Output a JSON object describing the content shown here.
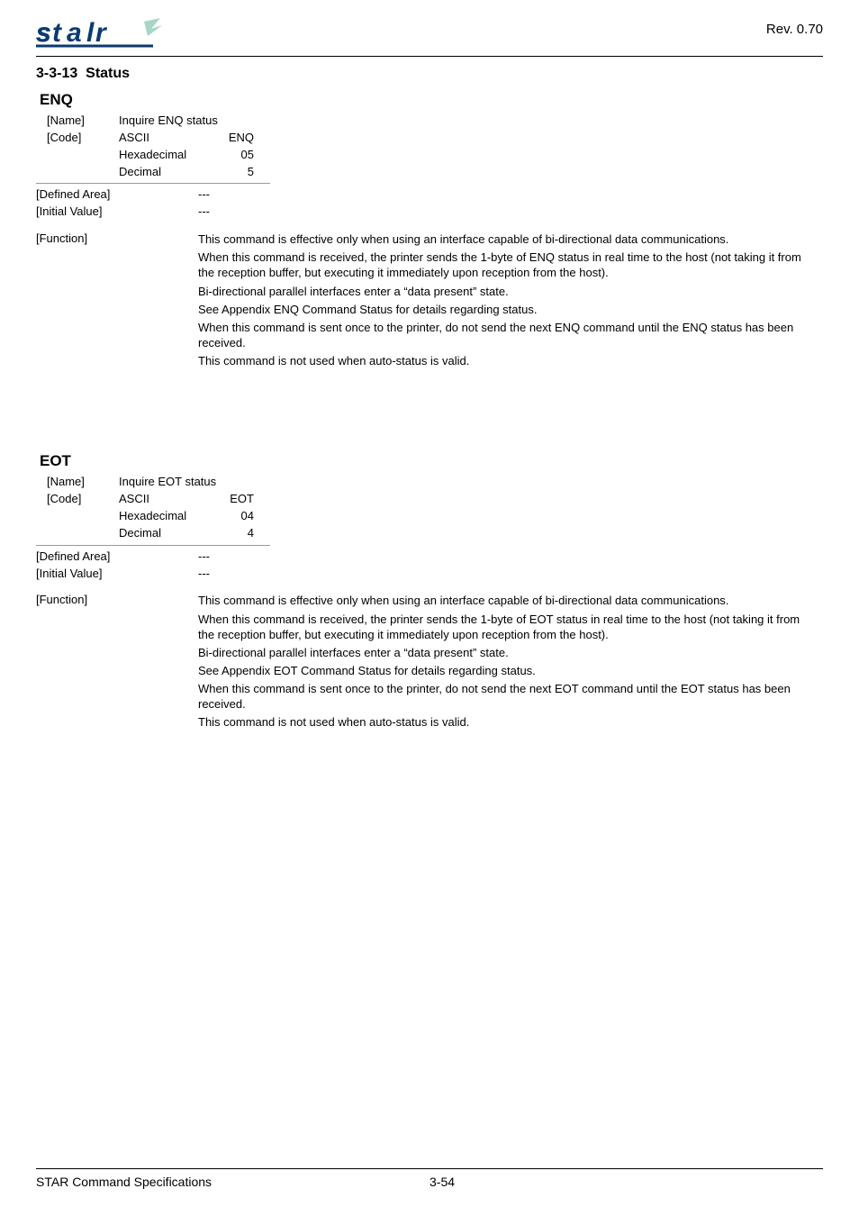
{
  "header": {
    "revision": "Rev. 0.70",
    "logo_main_color": "#0b3a6f",
    "logo_accent_color": "#a7d5c8"
  },
  "section": {
    "number": "3-3-13",
    "title": "Status"
  },
  "commands": [
    {
      "id": "ENQ",
      "name_label": "[Name]",
      "name_value": "Inquire ENQ status",
      "code_label": "[Code]",
      "codes": [
        {
          "format": "ASCII",
          "value": "ENQ"
        },
        {
          "format": "Hexadecimal",
          "value": "05"
        },
        {
          "format": "Decimal",
          "value": "5"
        }
      ],
      "defined_area_label": "[Defined Area]",
      "defined_area_value": "---",
      "initial_value_label": "[Initial Value]",
      "initial_value_value": "---",
      "function_label": "[Function]",
      "function_paragraphs": [
        "This command is effective only when using an interface capable of bi-directional data communications.",
        "When this command is received, the printer sends the 1-byte of ENQ status in real time to the host (not taking it from the reception buffer, but executing it immediately upon reception from the host).",
        "Bi-directional parallel interfaces enter a “data present” state.",
        "See Appendix ENQ Command Status for details regarding status.",
        "When this command is sent once to the printer, do not send the next ENQ command until the ENQ status has been received.",
        "This command is not used when auto-status is valid."
      ]
    },
    {
      "id": "EOT",
      "name_label": "[Name]",
      "name_value": "Inquire EOT status",
      "code_label": "[Code]",
      "codes": [
        {
          "format": "ASCII",
          "value": "EOT"
        },
        {
          "format": "Hexadecimal",
          "value": "04"
        },
        {
          "format": "Decimal",
          "value": "4"
        }
      ],
      "defined_area_label": "[Defined Area]",
      "defined_area_value": "---",
      "initial_value_label": "[Initial Value]",
      "initial_value_value": "---",
      "function_label": "[Function]",
      "function_paragraphs": [
        "This command is effective only when using an interface capable of bi-directional data communications.",
        "When this command is received, the printer sends the 1-byte of EOT status in real time to the host (not taking it from the reception buffer, but executing it immediately upon reception from the host).",
        "Bi-directional parallel interfaces enter a “data present” state.",
        "See Appendix EOT Command Status for details regarding status.",
        "When this command is sent once to the printer, do not send the next EOT command until the EOT status has been received.",
        "This command is not used when auto-status is valid."
      ]
    }
  ],
  "footer": {
    "title": "STAR Command Specifications",
    "page": "3-54"
  }
}
